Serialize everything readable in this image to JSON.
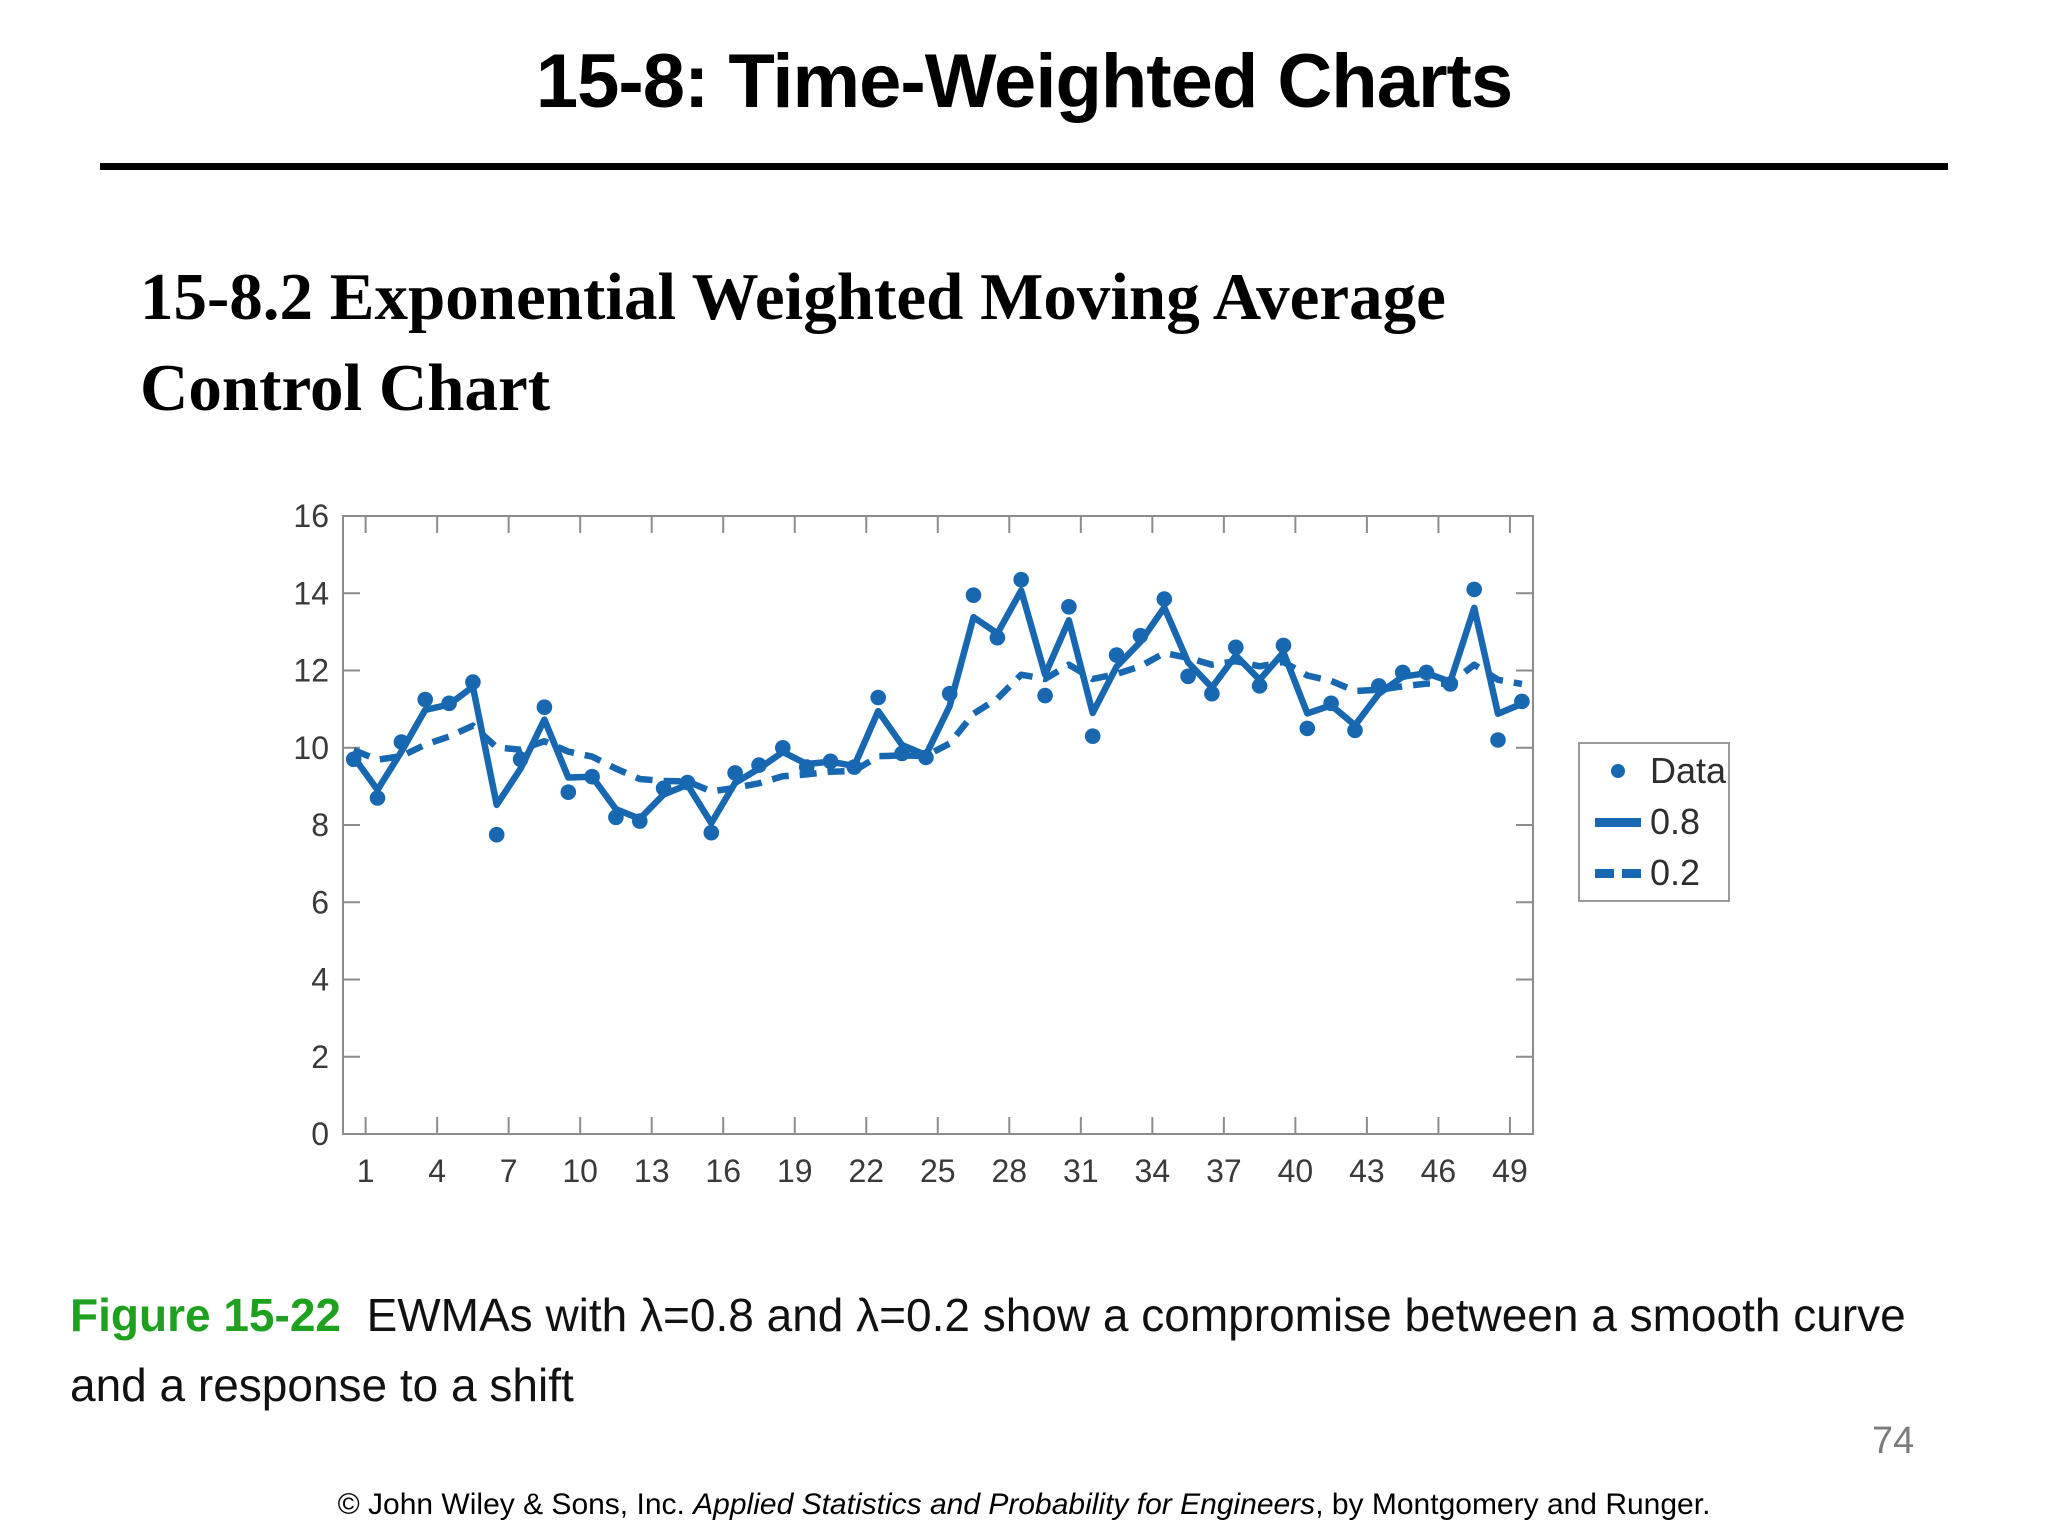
{
  "slide": {
    "title": "15-8: Time-Weighted Charts",
    "section_heading_line1": "15-8.2 Exponential Weighted Moving Average",
    "section_heading_line2": "Control Chart",
    "page_number": "74",
    "footer_prefix": "© John Wiley & Sons, Inc.  ",
    "footer_book_title": "Applied Statistics and Probability for Engineers",
    "footer_suffix": ", by Montgomery and Runger."
  },
  "caption": {
    "figure_label": "Figure 15-22",
    "line1": "EWMAs with λ=0.8 and λ=0.2 show a compromise between a smooth curve",
    "line2": "and a response to a shift",
    "label_color": "#1ea11e"
  },
  "chart_data": {
    "type": "line",
    "title": "",
    "xlabel": "",
    "ylabel": "",
    "ylim": [
      0,
      16
    ],
    "yticks": [
      0,
      2,
      4,
      6,
      8,
      10,
      12,
      14,
      16
    ],
    "xticks": [
      1,
      4,
      7,
      10,
      13,
      16,
      19,
      22,
      25,
      28,
      31,
      34,
      37,
      40,
      43,
      46,
      49
    ],
    "grid": false,
    "legend_position": "right",
    "x": [
      1,
      2,
      3,
      4,
      5,
      6,
      7,
      8,
      9,
      10,
      11,
      12,
      13,
      14,
      15,
      16,
      17,
      18,
      19,
      20,
      21,
      22,
      23,
      24,
      25,
      26,
      27,
      28,
      29,
      30,
      31,
      32,
      33,
      34,
      35,
      36,
      37,
      38,
      39,
      40,
      41,
      42,
      43,
      44,
      45,
      46,
      47,
      48,
      49,
      50
    ],
    "series": [
      {
        "name": "Data",
        "style": "scatter",
        "values": [
          9.7,
          8.7,
          10.15,
          11.25,
          11.15,
          11.7,
          7.75,
          9.7,
          11.05,
          8.85,
          9.25,
          8.2,
          8.1,
          8.95,
          9.1,
          7.8,
          9.35,
          9.55,
          10.0,
          9.5,
          9.65,
          9.5,
          11.3,
          9.85,
          9.75,
          11.4,
          13.95,
          12.85,
          14.35,
          11.35,
          13.65,
          10.3,
          12.4,
          12.9,
          13.85,
          11.85,
          11.4,
          12.6,
          11.6,
          12.65,
          10.5,
          11.15,
          10.45,
          11.6,
          11.95,
          11.95,
          11.65,
          14.1,
          10.2,
          11.2
        ]
      },
      {
        "name": "0.8",
        "style": "solid",
        "lambda": 0.8,
        "ewma_start": 10,
        "values": [
          9.76,
          8.91,
          9.9,
          10.98,
          11.12,
          11.58,
          8.52,
          9.46,
          10.73,
          9.23,
          9.25,
          8.41,
          8.16,
          8.79,
          9.04,
          8.05,
          9.09,
          9.46,
          9.89,
          9.58,
          9.64,
          9.53,
          10.95,
          10.07,
          9.81,
          11.08,
          13.38,
          12.96,
          14.07,
          11.89,
          13.3,
          10.9,
          12.1,
          12.74,
          13.63,
          12.21,
          11.56,
          12.39,
          11.76,
          12.47,
          10.89,
          11.1,
          10.58,
          11.4,
          11.84,
          11.93,
          11.71,
          13.62,
          10.88,
          11.14
        ]
      },
      {
        "name": "0.2",
        "style": "dashed",
        "lambda": 0.2,
        "ewma_start": 10,
        "values": [
          9.94,
          9.69,
          9.78,
          10.08,
          10.29,
          10.57,
          10.01,
          9.95,
          10.17,
          9.9,
          9.77,
          9.46,
          9.19,
          9.14,
          9.13,
          8.87,
          8.96,
          9.08,
          9.26,
          9.31,
          9.38,
          9.4,
          9.78,
          9.8,
          9.79,
          10.11,
          10.88,
          11.27,
          11.89,
          11.78,
          12.15,
          11.78,
          11.91,
          12.11,
          12.45,
          12.33,
          12.15,
          12.24,
          12.11,
          12.22,
          11.87,
          11.73,
          11.47,
          11.5,
          11.59,
          11.66,
          11.66,
          12.15,
          11.76,
          11.65
        ]
      }
    ],
    "colors": {
      "series_blue": "#1768b1",
      "axis_gray": "#8c8c8c"
    }
  }
}
